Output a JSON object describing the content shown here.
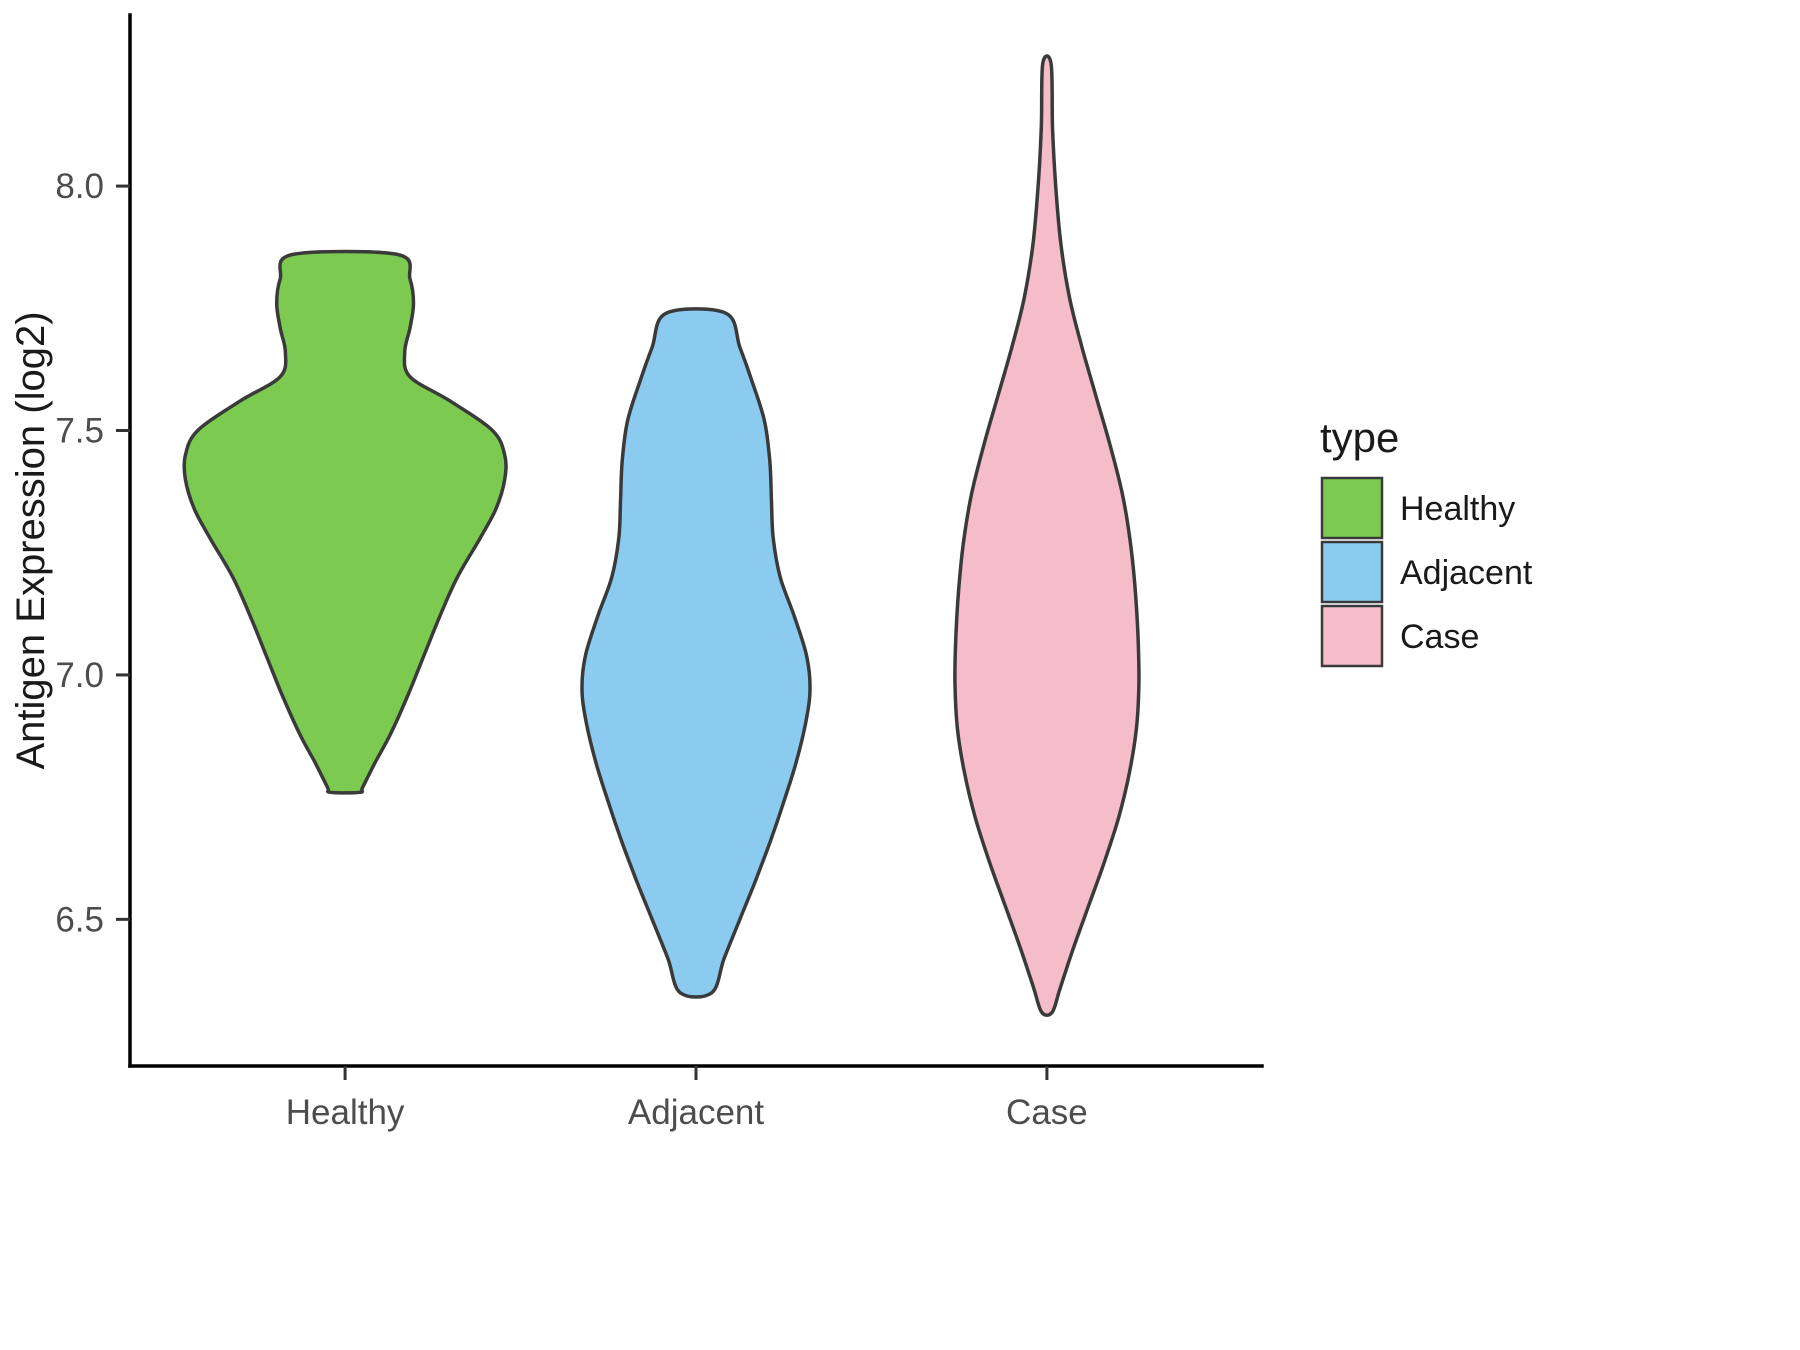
{
  "figure": {
    "background": "#FFFFFF"
  },
  "chart_data": {
    "type": "violin",
    "title": "",
    "xlabel": "",
    "ylabel": "Antigen Expression (log2)",
    "categories": [
      "Healthy",
      "Adjacent",
      "Case"
    ],
    "ylim": [
      6.2,
      8.35
    ],
    "yticks": [
      6.5,
      7.0,
      7.5,
      8.0
    ],
    "ytick_labels": [
      "6.5",
      "7.0",
      "7.5",
      "8.0"
    ],
    "grid": false,
    "axis_color": "#000000",
    "tick_color": "#333333",
    "tick_label_color": "#4D4D4D",
    "axis_title_color": "#1A1A1A",
    "outline_color": "#3A3A3A",
    "legend": {
      "title": "type",
      "position": "right",
      "entries": [
        {
          "label": "Healthy",
          "color": "#7CCB50"
        },
        {
          "label": "Adjacent",
          "color": "#8CCBF0"
        },
        {
          "label": "Case",
          "color": "#F5BCC9"
        }
      ]
    },
    "series": [
      {
        "name": "Healthy",
        "color": "#7CCB50",
        "y_min": 6.76,
        "y_max": 7.86,
        "profile": [
          [
            7.86,
            0.15
          ],
          [
            7.81,
            0.185
          ],
          [
            7.76,
            0.195
          ],
          [
            7.71,
            0.185
          ],
          [
            7.66,
            0.17
          ],
          [
            7.61,
            0.185
          ],
          [
            7.56,
            0.3
          ],
          [
            7.5,
            0.42
          ],
          [
            7.45,
            0.455
          ],
          [
            7.4,
            0.455
          ],
          [
            7.34,
            0.43
          ],
          [
            7.28,
            0.385
          ],
          [
            7.2,
            0.32
          ],
          [
            7.12,
            0.27
          ],
          [
            7.04,
            0.225
          ],
          [
            6.96,
            0.18
          ],
          [
            6.88,
            0.13
          ],
          [
            6.82,
            0.085
          ],
          [
            6.77,
            0.05
          ],
          [
            6.76,
            0.042
          ]
        ]
      },
      {
        "name": "Adjacent",
        "color": "#8CCBF0",
        "y_min": 6.35,
        "y_max": 7.74,
        "profile": [
          [
            7.74,
            0.085
          ],
          [
            7.67,
            0.125
          ],
          [
            7.6,
            0.16
          ],
          [
            7.52,
            0.195
          ],
          [
            7.44,
            0.21
          ],
          [
            7.36,
            0.215
          ],
          [
            7.28,
            0.22
          ],
          [
            7.2,
            0.24
          ],
          [
            7.12,
            0.28
          ],
          [
            7.04,
            0.315
          ],
          [
            6.97,
            0.325
          ],
          [
            6.9,
            0.312
          ],
          [
            6.82,
            0.285
          ],
          [
            6.74,
            0.25
          ],
          [
            6.66,
            0.212
          ],
          [
            6.58,
            0.17
          ],
          [
            6.5,
            0.125
          ],
          [
            6.42,
            0.08
          ],
          [
            6.35,
            0.045
          ]
        ]
      },
      {
        "name": "Case",
        "color": "#F5BCC9",
        "y_min": 6.31,
        "y_max": 8.25,
        "profile": [
          [
            8.25,
            0.012
          ],
          [
            8.12,
            0.016
          ],
          [
            8.0,
            0.025
          ],
          [
            7.88,
            0.04
          ],
          [
            7.77,
            0.065
          ],
          [
            7.67,
            0.1
          ],
          [
            7.57,
            0.14
          ],
          [
            7.47,
            0.18
          ],
          [
            7.37,
            0.215
          ],
          [
            7.27,
            0.238
          ],
          [
            7.17,
            0.252
          ],
          [
            7.07,
            0.26
          ],
          [
            6.98,
            0.262
          ],
          [
            6.89,
            0.255
          ],
          [
            6.8,
            0.235
          ],
          [
            6.71,
            0.205
          ],
          [
            6.62,
            0.165
          ],
          [
            6.53,
            0.12
          ],
          [
            6.44,
            0.075
          ],
          [
            6.36,
            0.038
          ],
          [
            6.31,
            0.015
          ]
        ]
      }
    ]
  }
}
